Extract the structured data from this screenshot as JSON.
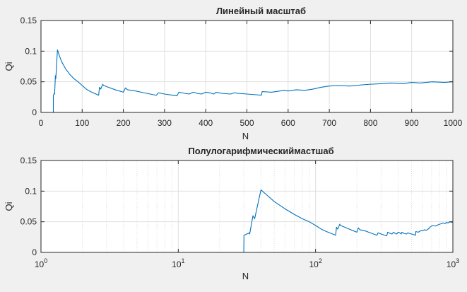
{
  "chart_data": [
    {
      "type": "line",
      "title": "Линейный масштаб",
      "xlabel": "N",
      "ylabel": "Qi",
      "xscale": "linear",
      "xlim": [
        0,
        1000
      ],
      "ylim": [
        0,
        0.15
      ],
      "grid": true,
      "xticks": [
        0,
        100,
        200,
        300,
        400,
        500,
        600,
        700,
        800,
        900,
        1000
      ],
      "xtick_labels": [
        "0",
        "100",
        "200",
        "300",
        "400",
        "500",
        "600",
        "700",
        "800",
        "900",
        "1000"
      ],
      "yticks": [
        0,
        0.05,
        0.1,
        0.15
      ],
      "ytick_labels": [
        "0",
        "0.05",
        "0.1",
        "0.15"
      ],
      "series": [
        {
          "color": "#0072bd",
          "x": [
            1,
            30,
            30.1,
            33,
            33.1,
            35,
            36,
            40,
            45,
            50,
            60,
            70,
            80,
            90,
            100,
            110,
            120,
            130,
            140,
            142,
            145,
            150,
            152,
            160,
            180,
            200,
            205,
            210,
            230,
            250,
            280,
            285,
            300,
            320,
            330,
            335,
            350,
            360,
            370,
            380,
            390,
            400,
            410,
            420,
            425,
            440,
            460,
            470,
            480,
            500,
            520,
            535,
            537,
            560,
            590,
            600,
            620,
            640,
            660,
            680,
            700,
            720,
            750,
            780,
            800,
            830,
            850,
            880,
            900,
            920,
            950,
            980,
            1000
          ],
          "y": [
            0,
            0,
            0.028,
            0.032,
            0.03,
            0.06,
            0.055,
            0.102,
            0.092,
            0.083,
            0.071,
            0.062,
            0.055,
            0.05,
            0.044,
            0.038,
            0.034,
            0.031,
            0.028,
            0.041,
            0.038,
            0.046,
            0.044,
            0.042,
            0.037,
            0.033,
            0.04,
            0.037,
            0.035,
            0.032,
            0.028,
            0.032,
            0.03,
            0.028,
            0.027,
            0.033,
            0.031,
            0.03,
            0.033,
            0.031,
            0.03,
            0.033,
            0.032,
            0.03,
            0.033,
            0.031,
            0.03,
            0.032,
            0.031,
            0.03,
            0.029,
            0.028,
            0.034,
            0.033,
            0.036,
            0.035,
            0.037,
            0.036,
            0.038,
            0.041,
            0.043,
            0.044,
            0.043,
            0.045,
            0.046,
            0.047,
            0.048,
            0.047,
            0.049,
            0.048,
            0.05,
            0.049,
            0.05
          ]
        }
      ]
    },
    {
      "type": "line",
      "title": "Полулогарифмическиймастшаб",
      "xlabel": "N",
      "ylabel": "Qi",
      "xscale": "log",
      "xlim": [
        1,
        1000
      ],
      "ylim": [
        0,
        0.15
      ],
      "grid": true,
      "xticks": [
        1,
        10,
        100,
        1000
      ],
      "xtick_labels": [
        {
          "base": "10",
          "exp": "0"
        },
        {
          "base": "10",
          "exp": "1"
        },
        {
          "base": "10",
          "exp": "2"
        },
        {
          "base": "10",
          "exp": "3"
        }
      ],
      "yticks": [
        0,
        0.05,
        0.1,
        0.15
      ],
      "ytick_labels": [
        "0",
        "0.05",
        "0.1",
        "0.15"
      ],
      "series": [
        {
          "color": "#0072bd",
          "x": [
            1,
            30,
            30.1,
            33,
            33.1,
            35,
            36,
            40,
            45,
            50,
            60,
            70,
            80,
            90,
            100,
            110,
            120,
            130,
            140,
            142,
            145,
            150,
            152,
            160,
            180,
            200,
            205,
            210,
            230,
            250,
            280,
            285,
            300,
            320,
            330,
            335,
            350,
            360,
            370,
            380,
            390,
            400,
            410,
            420,
            425,
            440,
            460,
            470,
            480,
            500,
            520,
            535,
            537,
            560,
            590,
            600,
            620,
            640,
            660,
            680,
            700,
            720,
            750,
            780,
            800,
            830,
            850,
            880,
            900,
            920,
            950,
            980,
            1000
          ],
          "y": [
            0,
            0,
            0.028,
            0.032,
            0.03,
            0.06,
            0.055,
            0.102,
            0.092,
            0.083,
            0.071,
            0.062,
            0.055,
            0.05,
            0.044,
            0.038,
            0.034,
            0.031,
            0.028,
            0.041,
            0.038,
            0.046,
            0.044,
            0.042,
            0.037,
            0.033,
            0.04,
            0.037,
            0.035,
            0.032,
            0.028,
            0.032,
            0.03,
            0.028,
            0.027,
            0.033,
            0.031,
            0.03,
            0.033,
            0.031,
            0.03,
            0.033,
            0.032,
            0.03,
            0.033,
            0.031,
            0.03,
            0.032,
            0.031,
            0.03,
            0.029,
            0.028,
            0.034,
            0.033,
            0.036,
            0.035,
            0.037,
            0.036,
            0.038,
            0.041,
            0.043,
            0.044,
            0.043,
            0.045,
            0.046,
            0.047,
            0.048,
            0.047,
            0.049,
            0.048,
            0.05,
            0.049,
            0.05
          ]
        }
      ]
    }
  ]
}
